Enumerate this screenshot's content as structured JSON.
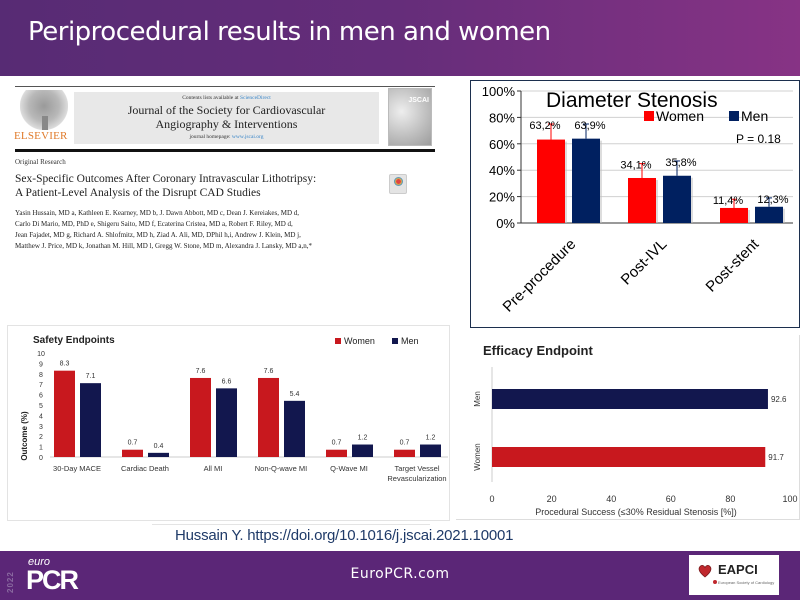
{
  "header": {
    "title": "Periprocedural results in men and women"
  },
  "paper": {
    "publisher": "ELSEVIER",
    "contents_prefix": "Contents lists available at ",
    "contents_link": "ScienceDirect",
    "journal_line1": "Journal of the Society for Cardiovascular",
    "journal_line2": "Angiography & Interventions",
    "homepage_prefix": "journal homepage: ",
    "homepage_url": "www.jscai.org",
    "cover_logo": "JSCAI",
    "article_type": "Original Research",
    "title_line1": "Sex-Specific Outcomes After Coronary Intravascular Lithotripsy:",
    "title_line2": "A Patient-Level Analysis of the Disrupt CAD Studies",
    "authors": [
      "Yasin Hussain, MD a, Kathleen E. Kearney, MD b, J. Dawn Abbott, MD c, Dean J. Kereiakes, MD d,",
      "Carlo Di Mario, MD, PhD e, Shigeru Saito, MD f, Ecaterina Cristea, MD a, Robert F. Riley, MD d,",
      "Jean Fajadet, MD g, Richard A. Shlofmitz, MD h, Ziad A. Ali, MD, DPhil h,i, Andrew J. Klein, MD j,",
      "Matthew J. Price, MD k, Jonathan M. Hill, MD l, Gregg W. Stone, MD m, Alexandra J. Lansky, MD a,n,*"
    ],
    "check_updates_icon": "check-for-updates-icon"
  },
  "colors": {
    "women_bright": "#ff0000",
    "men_bright": "#002060",
    "women_dark": "#c8181e",
    "men_dark": "#12174e",
    "header_purple": "#5b2677",
    "citation_blue": "#1f3a68"
  },
  "chart_data": [
    {
      "id": "diameter-stenosis",
      "type": "bar",
      "title": "Diameter Stenosis",
      "categories": [
        "Pre-procedure",
        "Post-IVL",
        "Post-stent"
      ],
      "series": [
        {
          "name": "Women",
          "values": [
            63.2,
            34.1,
            11.4
          ],
          "labels": [
            "63,2%",
            "34,1%",
            "11,4%"
          ],
          "error_upper": [
            75,
            45,
            18
          ]
        },
        {
          "name": "Men",
          "values": [
            63.9,
            35.8,
            12.3
          ],
          "labels": [
            "63,9%",
            "35,8%",
            "12,3%"
          ],
          "error_upper": [
            75,
            47,
            19
          ]
        }
      ],
      "annotation": "P = 0.18",
      "yticks": [
        "0%",
        "20%",
        "40%",
        "60%",
        "80%",
        "100%"
      ],
      "ylim": [
        0,
        100
      ],
      "grid": true,
      "legend": "top-right",
      "xlabel": "",
      "ylabel": ""
    },
    {
      "id": "safety-endpoints",
      "type": "bar",
      "title": "Safety Endpoints",
      "categories": [
        "30-Day MACE",
        "Cardiac Death",
        "All MI",
        "Non-Q-wave MI",
        "Q-Wave MI",
        "Target Vessel Revascularization"
      ],
      "category_lines": [
        [
          "30-Day MACE"
        ],
        [
          "Cardiac Death"
        ],
        [
          "All MI"
        ],
        [
          "Non-Q-wave MI"
        ],
        [
          "Q-Wave MI"
        ],
        [
          "Target Vessel",
          "Revascularization"
        ]
      ],
      "series": [
        {
          "name": "Women",
          "values": [
            8.3,
            0.7,
            7.6,
            7.6,
            0.7,
            0.7
          ]
        },
        {
          "name": "Men",
          "values": [
            7.1,
            0.4,
            6.6,
            5.4,
            1.2,
            1.2
          ]
        }
      ],
      "ylabel": "Outcome (%)",
      "xlabel": "",
      "yticks": [
        "0",
        "1",
        "2",
        "3",
        "4",
        "5",
        "6",
        "7",
        "8",
        "9",
        "10"
      ],
      "ylim": [
        0,
        10
      ],
      "grid": false,
      "legend": "top-right"
    },
    {
      "id": "efficacy-endpoint",
      "type": "bar",
      "orientation": "horizontal",
      "title": "Efficacy Endpoint",
      "categories": [
        "Men",
        "Women"
      ],
      "values": [
        92.6,
        91.7
      ],
      "xlabel": "Procedural Success (≤30% Residual Stenosis [%])",
      "ylabel": "",
      "xticks": [
        "0",
        "20",
        "40",
        "60",
        "80",
        "100"
      ],
      "xlim": [
        0,
        100
      ],
      "grid": false
    }
  ],
  "citation": {
    "text": "Hussain Y. https://doi.org/10.1016/j.jscai.2021.10001"
  },
  "footer": {
    "year": "2022",
    "brand_small": "euro",
    "brand_large": "PCR",
    "website": "EuroPCR.com",
    "partner_logo": "EAPCI",
    "partner_sub": "European Society of Cardiology"
  }
}
